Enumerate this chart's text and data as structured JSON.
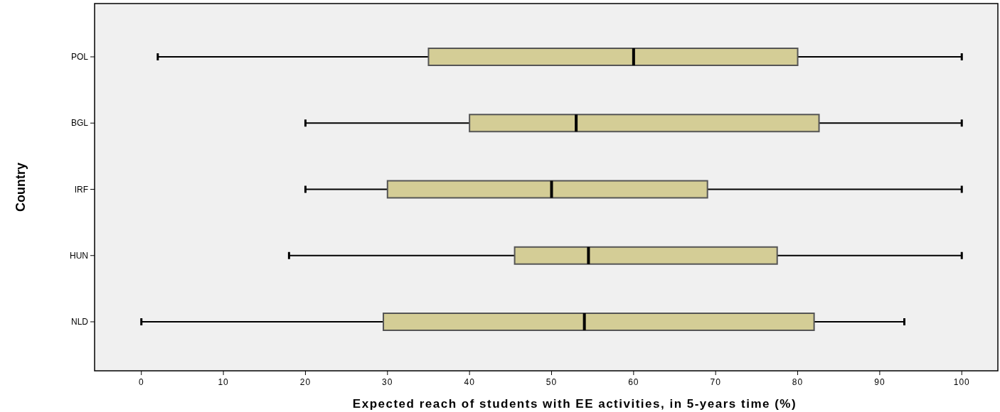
{
  "chart_data": {
    "type": "box",
    "orientation": "horizontal",
    "xlabel": "Expected reach of students with EE activities, in 5-years time (%)",
    "ylabel": "Country",
    "categories": [
      "POL",
      "BGL",
      "IRF",
      "HUN",
      "NLD"
    ],
    "color": "#d4cd96",
    "boxes": [
      {
        "low": 2,
        "q1": 35,
        "median": 60,
        "q3": 80,
        "high": 100
      },
      {
        "low": 20,
        "q1": 40,
        "median": 53,
        "q3": 82.6,
        "high": 100
      },
      {
        "low": 20,
        "q1": 30,
        "median": 50,
        "q3": 69,
        "high": 100
      },
      {
        "low": 18,
        "q1": 45.5,
        "median": 54.5,
        "q3": 77.5,
        "high": 100
      },
      {
        "low": 0,
        "q1": 29.5,
        "median": 54,
        "q3": 82,
        "high": 93
      }
    ],
    "xlim": [
      -5.7,
      104.4
    ],
    "xticks": [
      0,
      10,
      20,
      30,
      40,
      50,
      60,
      70,
      80,
      90,
      100
    ],
    "grid": false
  }
}
